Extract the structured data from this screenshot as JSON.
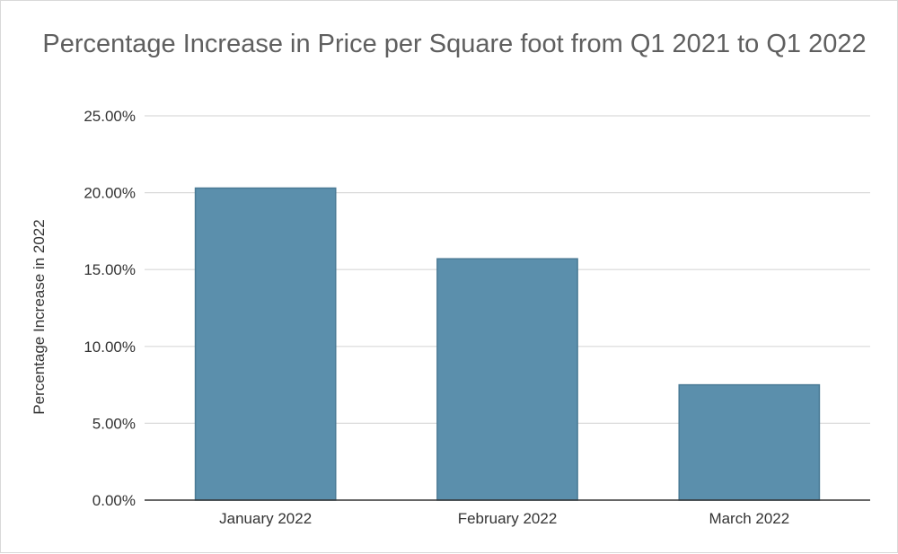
{
  "chart_data": {
    "type": "bar",
    "title": "Percentage Increase in Price per Square foot from Q1 2021 to Q1 2022",
    "xlabel": "",
    "ylabel": "Percentage Increase in 2022",
    "categories": [
      "January 2022",
      "February 2022",
      "March 2022"
    ],
    "values": [
      20.3,
      15.7,
      7.5
    ],
    "ylim": [
      0,
      25
    ],
    "yticks": [
      0,
      5,
      10,
      15,
      20,
      25
    ],
    "ytick_labels": [
      "0.00%",
      "5.00%",
      "10.00%",
      "15.00%",
      "20.00%",
      "25.00%"
    ],
    "grid": true,
    "legend": "none",
    "colors": {
      "bar_fill": "#5b8fac",
      "bar_stroke": "#4a7a95",
      "grid": "#d9d9d9",
      "axis": "#333333",
      "text": "#333333"
    }
  }
}
